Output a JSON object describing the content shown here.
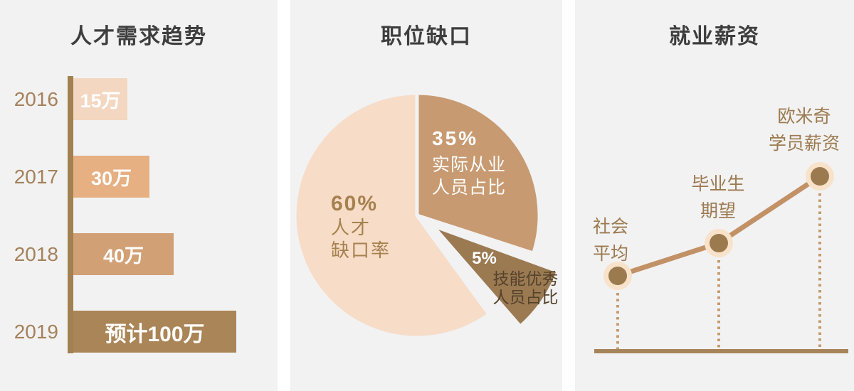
{
  "page": {
    "background": "#ffffff",
    "panel_background": "#f2f2f3",
    "title_color": "#3e3e3e"
  },
  "chart_data": [
    {
      "type": "bar",
      "title": "人才需求趋势",
      "orientation": "horizontal",
      "categories": [
        "2016",
        "2017",
        "2018",
        "2019"
      ],
      "values": [
        15,
        30,
        40,
        100
      ],
      "value_labels": [
        "15万",
        "30万",
        "40万",
        "预计100万"
      ],
      "unit": "万",
      "bar_colors": [
        "#f4d7c0",
        "#e6b083",
        "#d2a075",
        "#aa8557"
      ],
      "axis_color": "#a3804f",
      "category_color": "#a5815a",
      "value_label_color": "#ffffff"
    },
    {
      "type": "pie",
      "title": "职位缺口",
      "slices": [
        {
          "label": "人才缺口率",
          "pct": 60,
          "pct_label": "60%",
          "line1": "人才",
          "line2": "缺口率",
          "color": "#f7dcc7",
          "text_color": "#a5814f",
          "exploded": false
        },
        {
          "label": "实际从业人员占比",
          "pct": 35,
          "pct_label": "35%",
          "line1": "实际从业",
          "line2": "人员占比",
          "color": "#c89a71",
          "text_color": "#ffffff",
          "exploded": false
        },
        {
          "label": "技能优秀人员占比",
          "pct": 5,
          "pct_label": "5%",
          "line1": "技能优秀",
          "line2": "人员占比",
          "color": "#9b7a52",
          "text_color": "#54422c",
          "exploded": true
        }
      ]
    },
    {
      "type": "line",
      "title": "就业薪资",
      "points": [
        {
          "label": "社会平均",
          "line1": "社会",
          "line2": "平均"
        },
        {
          "label": "毕业生期望",
          "line1": "毕业生",
          "line2": "期望"
        },
        {
          "label": "欧米奇学员薪资",
          "line1": "欧米奇",
          "line2": "学员薪资"
        }
      ],
      "trend": "increasing",
      "line_color": "#c29166",
      "marker_inner_color": "#9c7a4f",
      "marker_ring_color": "#f8e2ca",
      "dotted_line_color": "#c49b6d",
      "baseline_color": "#a8845a",
      "label_color": "#9c7a4f"
    }
  ]
}
